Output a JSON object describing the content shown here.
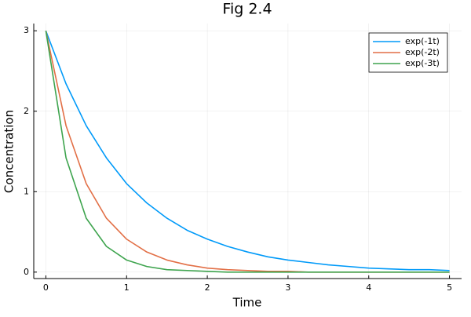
{
  "chart_data": {
    "type": "line",
    "title": "Fig 2.4",
    "x_label": "Time",
    "y_label": "Concentration",
    "x": [
      0,
      0.25,
      0.5,
      0.75,
      1,
      1.25,
      1.5,
      1.75,
      2,
      2.25,
      2.5,
      2.75,
      3,
      3.25,
      3.5,
      3.75,
      4,
      4.25,
      4.5,
      4.75,
      5
    ],
    "series": [
      {
        "name": "exp(-1t)",
        "color": "#009af9",
        "values": [
          3,
          2.34,
          1.82,
          1.42,
          1.1,
          0.86,
          0.67,
          0.52,
          0.41,
          0.32,
          0.25,
          0.19,
          0.15,
          0.12,
          0.09,
          0.07,
          0.05,
          0.04,
          0.03,
          0.03,
          0.02
        ]
      },
      {
        "name": "exp(-2t)",
        "color": "#e26f46",
        "values": [
          3,
          1.82,
          1.1,
          0.67,
          0.41,
          0.25,
          0.15,
          0.09,
          0.05,
          0.03,
          0.02,
          0.01,
          0.01,
          0,
          0,
          0,
          0,
          0,
          0,
          0,
          0
        ]
      },
      {
        "name": "exp(-3t)",
        "color": "#3ea44e",
        "values": [
          3,
          1.42,
          0.67,
          0.32,
          0.15,
          0.07,
          0.03,
          0.02,
          0.01,
          0,
          0,
          0,
          0,
          0,
          0,
          0,
          0,
          0,
          0,
          0,
          0
        ]
      }
    ],
    "xlim": [
      -0.15,
      5.15
    ],
    "xticks": [
      0,
      1,
      2,
      3,
      4,
      5
    ],
    "ylim": [
      -0.08,
      3.09
    ],
    "yticks": [
      0,
      1,
      2,
      3
    ],
    "grid": true,
    "legend": "top-right"
  }
}
